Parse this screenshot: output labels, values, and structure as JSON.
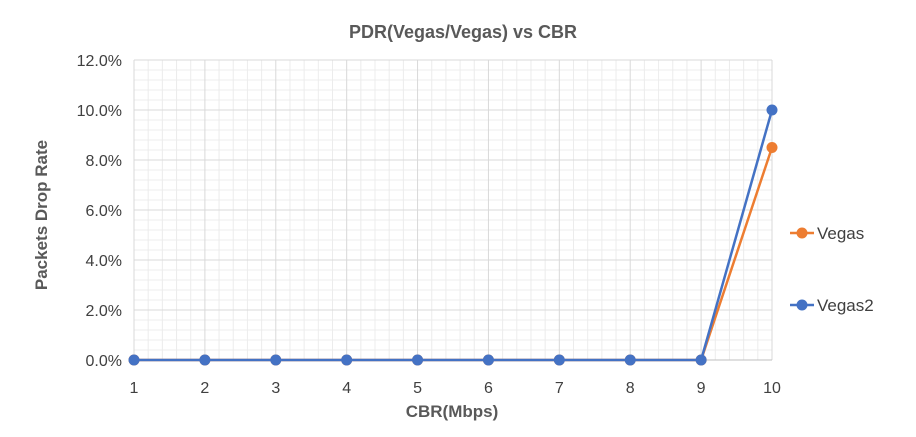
{
  "chart_data": {
    "type": "line",
    "title": "PDR(Vegas/Vegas) vs CBR",
    "xlabel": "CBR(Mbps)",
    "ylabel": "Packets Drop Rate",
    "x": [
      1,
      2,
      3,
      4,
      5,
      6,
      7,
      8,
      9,
      10
    ],
    "x_tick_labels": [
      "1",
      "2",
      "3",
      "4",
      "5",
      "6",
      "7",
      "8",
      "9",
      "10"
    ],
    "ylim": [
      0,
      0.12
    ],
    "y_ticks": [
      0,
      0.02,
      0.04,
      0.06,
      0.08,
      0.1,
      0.12
    ],
    "y_tick_labels": [
      "0.0%",
      "2.0%",
      "4.0%",
      "6.0%",
      "8.0%",
      "10.0%",
      "12.0%"
    ],
    "grid": true,
    "legend_position": "right",
    "series": [
      {
        "name": "Vegas",
        "color": "#ED7D31",
        "values": [
          0,
          0,
          0,
          0,
          0,
          0,
          0,
          0,
          0,
          0.085
        ]
      },
      {
        "name": "Vegas2",
        "color": "#4472C4",
        "values": [
          0,
          0,
          0,
          0,
          0,
          0,
          0,
          0,
          0,
          0.1
        ]
      }
    ]
  }
}
